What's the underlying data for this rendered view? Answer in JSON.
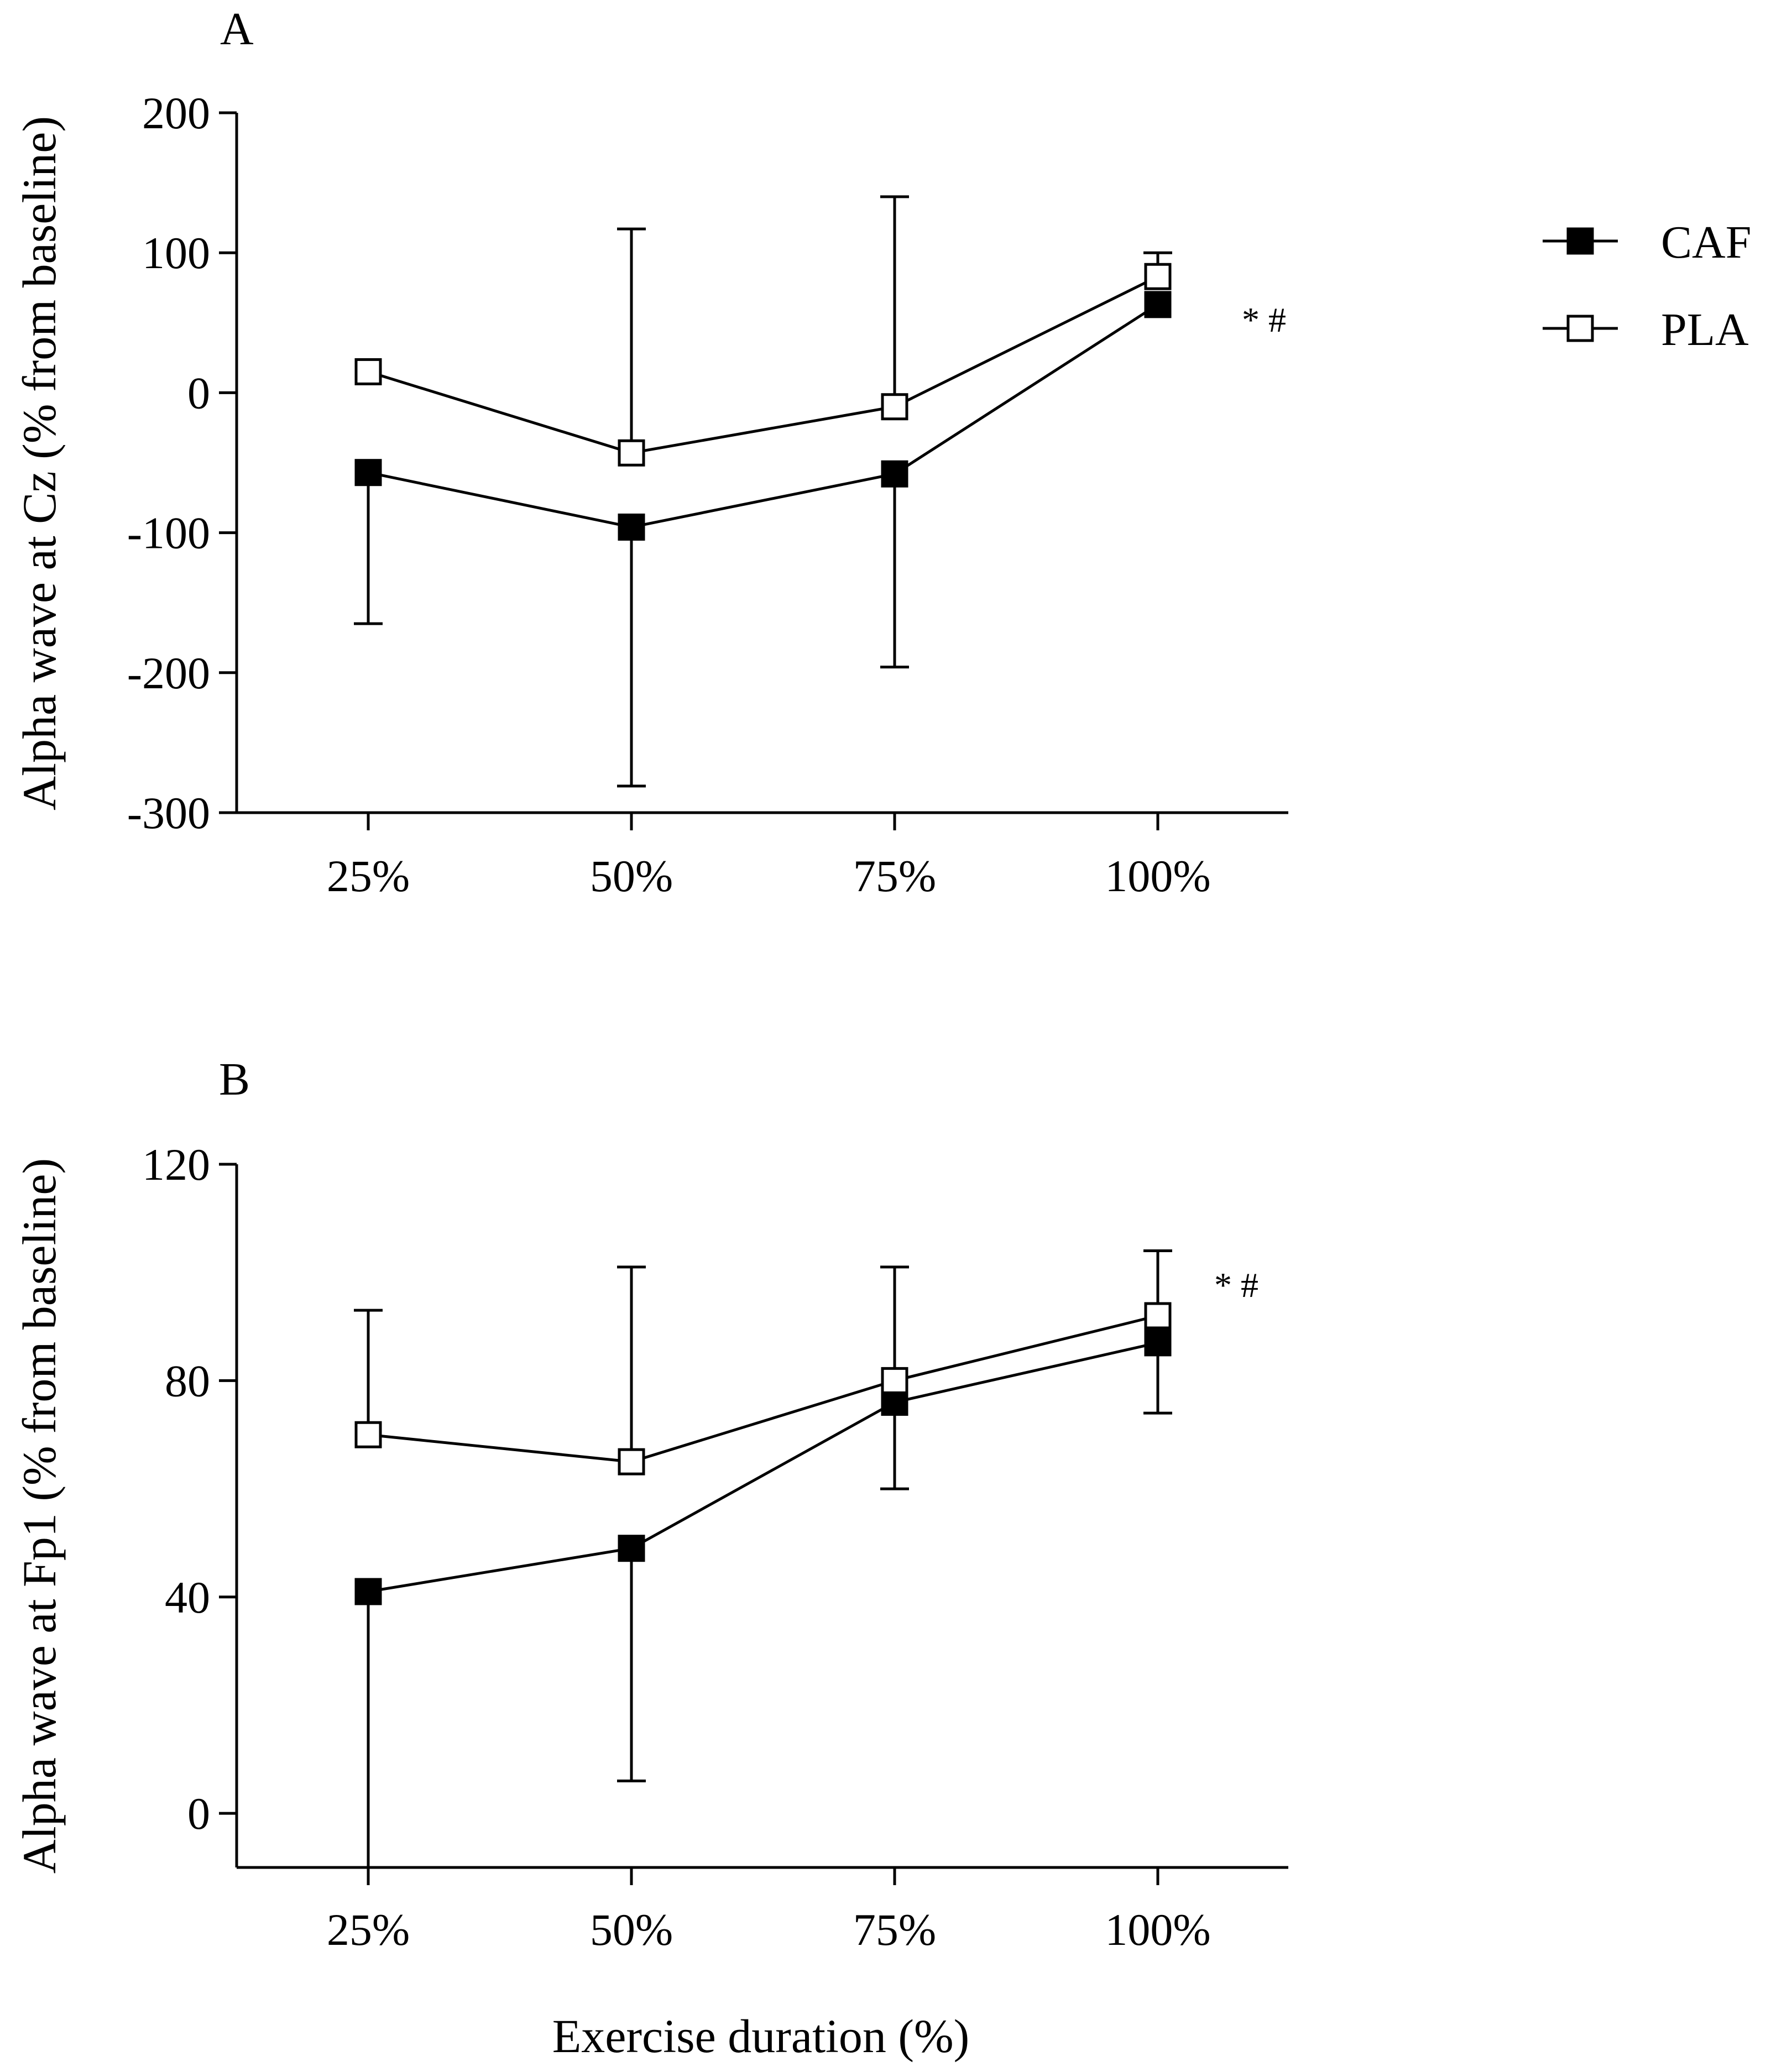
{
  "chart_data": [
    {
      "type": "line",
      "panel_label": "A",
      "categories": [
        "25%",
        "50%",
        "75%",
        "100%"
      ],
      "ylabel": "Alpha wave at Cz (% from baseline)",
      "ylim": [
        -300,
        200
      ],
      "yticks": [
        -300,
        -200,
        -100,
        0,
        100,
        200
      ],
      "ytick_labels": [
        "-300",
        "-200",
        "-100",
        "0",
        "100",
        "200"
      ],
      "grid": false,
      "series": [
        {
          "name": "CAF",
          "marker": "filled-square",
          "values": [
            -57,
            -96,
            -58,
            63
          ],
          "error_lower": [
            -165,
            -281,
            -196,
            63
          ],
          "error_upper": [
            -57,
            -96,
            -58,
            63
          ]
        },
        {
          "name": "PLA",
          "marker": "open-square",
          "values": [
            15,
            -43,
            -10,
            83
          ],
          "error_lower": [
            15,
            -43,
            -10,
            83
          ],
          "error_upper": [
            15,
            117,
            140,
            100
          ]
        }
      ],
      "annotation": "* #"
    },
    {
      "type": "line",
      "panel_label": "B",
      "categories": [
        "25%",
        "50%",
        "75%",
        "100%"
      ],
      "ylabel": "Alpha wave at Fp1 (% from baseline)",
      "ylim": [
        -10,
        120
      ],
      "yticks": [
        0,
        40,
        80,
        120
      ],
      "ytick_labels": [
        "0",
        "40",
        "80",
        "120"
      ],
      "grid": false,
      "series": [
        {
          "name": "CAF",
          "marker": "filled-square",
          "values": [
            41,
            49,
            76,
            87
          ],
          "error_lower": [
            -10,
            6,
            60,
            74
          ],
          "error_upper": [
            41,
            49,
            76,
            87
          ]
        },
        {
          "name": "PLA",
          "marker": "open-square",
          "values": [
            70,
            65,
            80,
            92
          ],
          "error_lower": [
            70,
            65,
            80,
            92
          ],
          "error_upper": [
            93,
            101,
            101,
            104
          ]
        }
      ],
      "annotation": "* #"
    }
  ],
  "shared": {
    "xlabel": "Exercise duration (%)",
    "legend": [
      {
        "name": "CAF",
        "marker": "filled-square"
      },
      {
        "name": "PLA",
        "marker": "open-square"
      }
    ],
    "legend_position": "top-right",
    "colors": {
      "line": "#000000",
      "background": "#ffffff"
    }
  }
}
